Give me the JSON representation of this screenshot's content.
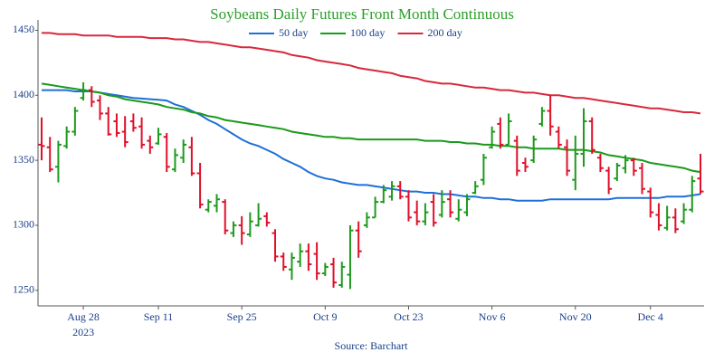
{
  "chart_data": {
    "type": "ohlc",
    "title": "Soybeans Daily Futures Front Month Continuous",
    "source": "Source: Barchart",
    "x_year": "2023",
    "up_color": "#1e9a1e",
    "down_color": "#e0102a",
    "grid": false,
    "x": [
      "2023-08-21",
      "2023-08-22",
      "2023-08-23",
      "2023-08-24",
      "2023-08-25",
      "2023-08-28",
      "2023-08-29",
      "2023-08-30",
      "2023-08-31",
      "2023-09-01",
      "2023-09-05",
      "2023-09-06",
      "2023-09-07",
      "2023-09-08",
      "2023-09-11",
      "2023-09-12",
      "2023-09-13",
      "2023-09-14",
      "2023-09-15",
      "2023-09-18",
      "2023-09-19",
      "2023-09-20",
      "2023-09-21",
      "2023-09-22",
      "2023-09-25",
      "2023-09-26",
      "2023-09-27",
      "2023-09-28",
      "2023-09-29",
      "2023-10-02",
      "2023-10-03",
      "2023-10-04",
      "2023-10-05",
      "2023-10-06",
      "2023-10-09",
      "2023-10-10",
      "2023-10-11",
      "2023-10-12",
      "2023-10-13",
      "2023-10-16",
      "2023-10-17",
      "2023-10-18",
      "2023-10-19",
      "2023-10-20",
      "2023-10-23",
      "2023-10-24",
      "2023-10-25",
      "2023-10-26",
      "2023-10-27",
      "2023-10-30",
      "2023-10-31",
      "2023-11-01",
      "2023-11-02",
      "2023-11-03",
      "2023-11-06",
      "2023-11-07",
      "2023-11-08",
      "2023-11-09",
      "2023-11-10",
      "2023-11-13",
      "2023-11-14",
      "2023-11-15",
      "2023-11-16",
      "2023-11-17",
      "2023-11-20",
      "2023-11-21",
      "2023-11-22",
      "2023-11-24",
      "2023-11-27",
      "2023-11-28",
      "2023-11-29",
      "2023-11-30",
      "2023-12-01",
      "2023-12-04",
      "2023-12-05",
      "2023-12-06",
      "2023-12-07",
      "2023-12-08",
      "2023-12-11",
      "2023-12-12"
    ],
    "open": [
      1362,
      1360,
      1345,
      1361,
      1372,
      1398,
      1404,
      1396,
      1386,
      1380,
      1372,
      1380,
      1376,
      1365,
      1363,
      1368,
      1343,
      1352,
      1360,
      1340,
      1312,
      1315,
      1318,
      1294,
      1300,
      1293,
      1300,
      1307,
      1294,
      1276,
      1266,
      1272,
      1280,
      1278,
      1263,
      1270,
      1254,
      1262,
      1296,
      1300,
      1306,
      1318,
      1322,
      1330,
      1322,
      1310,
      1303,
      1318,
      1308,
      1320,
      1305,
      1310,
      1325,
      1335,
      1360,
      1378,
      1362,
      1365,
      1348,
      1350,
      1378,
      1388,
      1372,
      1360,
      1335,
      1355,
      1380,
      1352,
      1342,
      1336,
      1344,
      1350,
      1344,
      1326,
      1308,
      1298,
      1306,
      1303,
      1312,
      1336
    ],
    "high": [
      1383,
      1368,
      1365,
      1376,
      1391,
      1410,
      1407,
      1400,
      1391,
      1386,
      1384,
      1386,
      1383,
      1369,
      1375,
      1371,
      1359,
      1366,
      1368,
      1348,
      1320,
      1324,
      1320,
      1303,
      1307,
      1310,
      1317,
      1310,
      1297,
      1279,
      1279,
      1286,
      1286,
      1287,
      1271,
      1275,
      1272,
      1300,
      1303,
      1310,
      1322,
      1331,
      1334,
      1334,
      1327,
      1319,
      1317,
      1324,
      1327,
      1327,
      1320,
      1324,
      1334,
      1355,
      1376,
      1383,
      1386,
      1369,
      1352,
      1369,
      1391,
      1400,
      1376,
      1366,
      1369,
      1390,
      1383,
      1355,
      1345,
      1348,
      1354,
      1352,
      1348,
      1329,
      1317,
      1315,
      1313,
      1317,
      1338,
      1355
    ],
    "low": [
      1350,
      1341,
      1333,
      1359,
      1369,
      1396,
      1391,
      1381,
      1369,
      1368,
      1360,
      1372,
      1359,
      1355,
      1362,
      1341,
      1341,
      1348,
      1338,
      1313,
      1310,
      1310,
      1293,
      1291,
      1285,
      1291,
      1299,
      1299,
      1272,
      1265,
      1258,
      1268,
      1265,
      1258,
      1261,
      1252,
      1252,
      1251,
      1275,
      1298,
      1306,
      1317,
      1319,
      1320,
      1303,
      1300,
      1300,
      1299,
      1306,
      1306,
      1303,
      1307,
      1324,
      1331,
      1359,
      1359,
      1362,
      1338,
      1341,
      1348,
      1376,
      1369,
      1359,
      1338,
      1327,
      1345,
      1355,
      1341,
      1324,
      1334,
      1340,
      1338,
      1324,
      1306,
      1296,
      1296,
      1294,
      1301,
      1310,
      1324
    ],
    "close": [
      1361,
      1343,
      1362,
      1372,
      1388,
      1404,
      1395,
      1386,
      1370,
      1371,
      1364,
      1375,
      1362,
      1360,
      1370,
      1345,
      1354,
      1362,
      1340,
      1316,
      1318,
      1320,
      1296,
      1300,
      1294,
      1303,
      1305,
      1302,
      1276,
      1268,
      1275,
      1280,
      1270,
      1263,
      1268,
      1256,
      1268,
      1296,
      1280,
      1306,
      1318,
      1327,
      1330,
      1322,
      1306,
      1303,
      1310,
      1302,
      1318,
      1310,
      1312,
      1320,
      1330,
      1352,
      1372,
      1362,
      1380,
      1342,
      1345,
      1366,
      1388,
      1376,
      1362,
      1342,
      1355,
      1380,
      1358,
      1344,
      1328,
      1346,
      1350,
      1342,
      1328,
      1310,
      1300,
      1306,
      1297,
      1312,
      1334,
      1326
    ],
    "series": [
      {
        "name": "50 day",
        "color": "#1f6fd8",
        "values": [
          1404,
          1404,
          1404,
          1404,
          1403,
          1403,
          1403,
          1402,
          1401,
          1400,
          1399,
          1398,
          1397.5,
          1397,
          1396.5,
          1396,
          1393,
          1391,
          1388,
          1385,
          1381,
          1378,
          1374,
          1370,
          1366,
          1363,
          1361,
          1358,
          1355,
          1351,
          1348,
          1345,
          1341,
          1338,
          1336,
          1335,
          1333,
          1332,
          1331,
          1331,
          1330,
          1329,
          1328,
          1327,
          1326,
          1326,
          1325,
          1325,
          1324,
          1324,
          1323,
          1322,
          1322,
          1321,
          1321,
          1320,
          1320,
          1319,
          1319,
          1319,
          1319,
          1320,
          1320,
          1320,
          1320,
          1320,
          1320,
          1320,
          1320,
          1321,
          1321,
          1321,
          1321,
          1321,
          1321,
          1322,
          1322,
          1322,
          1323,
          1324
        ]
      },
      {
        "name": "100 day",
        "color": "#1a9a1a",
        "values": [
          1409,
          1408,
          1407,
          1406,
          1405,
          1404,
          1403,
          1402,
          1400,
          1399,
          1397,
          1396,
          1395,
          1394,
          1393,
          1391,
          1390,
          1389,
          1387,
          1386,
          1384,
          1383,
          1381,
          1380,
          1379,
          1378,
          1377,
          1376,
          1375,
          1374,
          1372,
          1371,
          1370,
          1369,
          1368,
          1368,
          1367,
          1367,
          1366,
          1366,
          1366,
          1366,
          1366,
          1366,
          1366,
          1366,
          1365,
          1365,
          1365,
          1364,
          1364,
          1363,
          1363,
          1362,
          1362,
          1361,
          1361,
          1360,
          1360,
          1359,
          1359,
          1359,
          1359,
          1358,
          1358,
          1358,
          1357,
          1356,
          1354,
          1353,
          1352,
          1351,
          1350,
          1348,
          1347,
          1346,
          1345,
          1344,
          1342,
          1341
        ]
      },
      {
        "name": "200 day",
        "color": "#d8283c",
        "values": [
          1448,
          1448,
          1447,
          1447,
          1447,
          1446,
          1446,
          1446,
          1446,
          1445,
          1445,
          1445,
          1445,
          1444,
          1444,
          1444,
          1443,
          1443,
          1442,
          1441,
          1441,
          1440,
          1439,
          1438,
          1437,
          1437,
          1436,
          1435,
          1434,
          1433,
          1431,
          1430,
          1429,
          1427,
          1426,
          1425,
          1424,
          1423,
          1421,
          1420,
          1419,
          1418,
          1417,
          1415,
          1414,
          1413,
          1411,
          1410,
          1409,
          1409,
          1408,
          1407,
          1406,
          1406,
          1405,
          1404,
          1404,
          1403,
          1402,
          1402,
          1401,
          1400,
          1400,
          1399,
          1398,
          1398,
          1397,
          1396,
          1395,
          1394,
          1393,
          1392,
          1391,
          1390,
          1390,
          1389,
          1388,
          1387,
          1387,
          1386
        ]
      }
    ],
    "ylim": [
      1238,
      1458
    ],
    "yticks": [
      1250,
      1300,
      1350,
      1400,
      1450
    ],
    "xticks": [
      {
        "value": "2023-08-28",
        "label": "Aug 28"
      },
      {
        "value": "2023-09-11",
        "label": "Sep 11"
      },
      {
        "value": "2023-09-25",
        "label": "Sep 25"
      },
      {
        "value": "2023-10-09",
        "label": "Oct 9"
      },
      {
        "value": "2023-10-23",
        "label": "Oct 23"
      },
      {
        "value": "2023-11-06",
        "label": "Nov 6"
      },
      {
        "value": "2023-11-20",
        "label": "Nov 20"
      },
      {
        "value": "2023-12-04",
        "label": "Dec 4"
      }
    ]
  }
}
